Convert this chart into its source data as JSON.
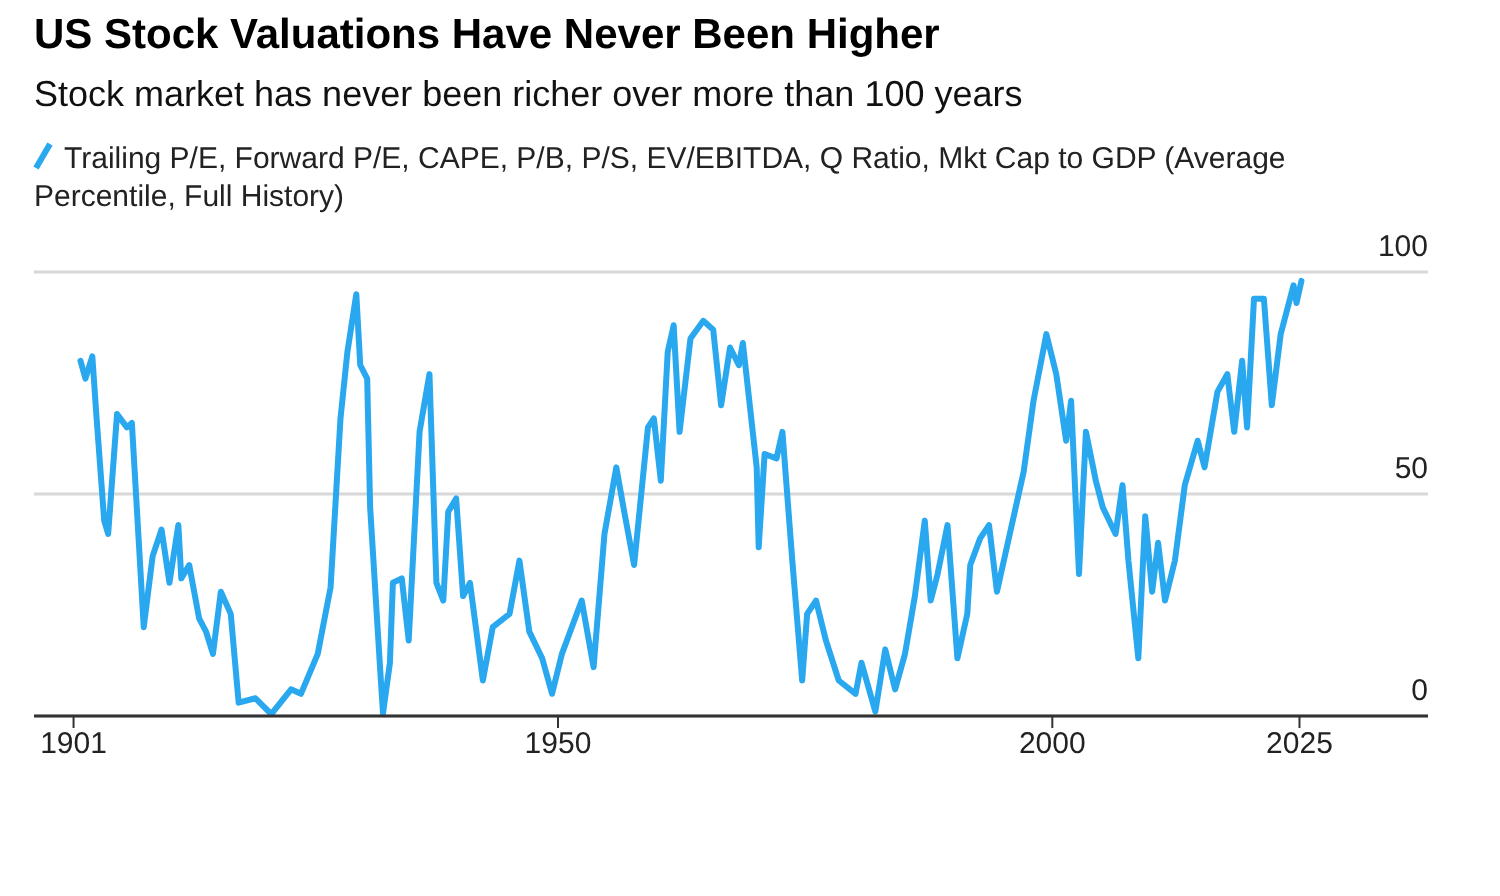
{
  "chart_data": {
    "type": "line",
    "title": "US Stock Valuations Have Never Been Higher",
    "subtitle": "Stock market has never been richer over more than 100 years",
    "x": [
      1901.7,
      1902.2,
      1902.9,
      1903.3,
      1904.1,
      1904.5,
      1905.4,
      1906.4,
      1906.9,
      1908.1,
      1909,
      1909.9,
      1910.7,
      1911.6,
      1911.9,
      1912.7,
      1913.7,
      1914.4,
      1915.1,
      1915.9,
      1916.9,
      1917.7,
      1919.4,
      1921,
      1923,
      1924,
      1925.7,
      1927,
      1928,
      1928.7,
      1929.6,
      1930,
      1930.7,
      1931,
      1932,
      1932.3,
      1933,
      1933.3,
      1934.2,
      1934.9,
      1936,
      1937,
      1937.7,
      1938.4,
      1938.9,
      1939.7,
      1940.4,
      1941.1,
      1942.4,
      1943.4,
      1945.1,
      1946.1,
      1947.1,
      1948.4,
      1949.4,
      1950.4,
      1952.4,
      1953.6,
      1954.7,
      1955.9,
      1956.7,
      1957.7,
      1959.1,
      1959.7,
      1960.4,
      1961.1,
      1961.7,
      1962.3,
      1963.4,
      1964.7,
      1965.7,
      1966.5,
      1967.4,
      1968.3,
      1968.7,
      1970.1,
      1970.3,
      1970.9,
      1972.1,
      1972.7,
      1973.7,
      1974.7,
      1975.2,
      1976.1,
      1977.1,
      1978.4,
      1980.1,
      1980.7,
      1982.1,
      1983.1,
      1984.1,
      1985.1,
      1986.1,
      1987.1,
      1987.7,
      1988.4,
      1989.4,
      1990.4,
      1991.4,
      1991.7,
      1992.7,
      1993.6,
      1994.4,
      1995.7,
      1997.1,
      1998.1,
      1999.4,
      2000.4,
      2001.4,
      2001.9,
      2002.7,
      2003.4,
      2004.4,
      2005.1,
      2006.4,
      2007.1,
      2007.7,
      2008.7,
      2009.4,
      2010.1,
      2010.7,
      2011.4,
      2012.4,
      2013.4,
      2014.7,
      2015.4,
      2016.7,
      2017.7,
      2018.4,
      2019.2,
      2019.7,
      2020.4,
      2021.4,
      2022.2,
      2023.1,
      2024.4,
      2024.7,
      2025.2
    ],
    "series": [
      {
        "name": "Trailing P/E, Forward P/E, CAPE, P/B, P/S, EV/EBITDA, Q Ratio, Mkt Cap to GDP (Average Percentile, Full History)",
        "color": "#29a8ef",
        "values": [
          80,
          76,
          81,
          68,
          44,
          41,
          68,
          65,
          66,
          20,
          36,
          42,
          30,
          43,
          31,
          34,
          22,
          19,
          14,
          28,
          23,
          3,
          4,
          0.4,
          6,
          5,
          14,
          29,
          67,
          82,
          95,
          79,
          76,
          47,
          11,
          0.6,
          12,
          30,
          31,
          17,
          64,
          77,
          30,
          26,
          46,
          49,
          27,
          30,
          8,
          20,
          23,
          35,
          19,
          13,
          5,
          14,
          26,
          11,
          41,
          56,
          46,
          34,
          65,
          67,
          53,
          82,
          88,
          64,
          85,
          89,
          87,
          70,
          83,
          79,
          84,
          56,
          38,
          59,
          58,
          64,
          35,
          8,
          23,
          26,
          17,
          8,
          5,
          12,
          1,
          15,
          6,
          14,
          27,
          44,
          26,
          32,
          43,
          13,
          23,
          34,
          40,
          43,
          28,
          41,
          55,
          71,
          86,
          77,
          62,
          71,
          32,
          64,
          53,
          47,
          41,
          52,
          35,
          13,
          45,
          28,
          39,
          26,
          35,
          52,
          62,
          56,
          73,
          77,
          64,
          80,
          65,
          94,
          94,
          70,
          86,
          97,
          93,
          98
        ]
      }
    ],
    "xlim": [
      1897,
      2038
    ],
    "xticks": [
      1901,
      1950,
      2000,
      2025
    ],
    "ylim": [
      0,
      100
    ],
    "yticks": [
      0,
      50,
      100
    ],
    "grid": "y",
    "legend": "top left"
  }
}
